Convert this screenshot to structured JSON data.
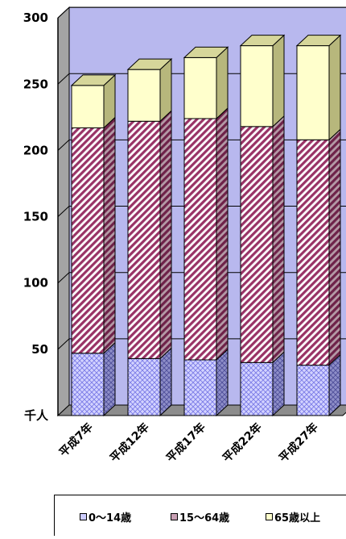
{
  "chart_data": {
    "type": "bar",
    "stacked": true,
    "three_d": true,
    "categories": [
      "平成7年",
      "平成12年",
      "平成17年",
      "平成22年",
      "平成27年"
    ],
    "series": [
      {
        "name": "0〜14歳",
        "values": [
          47,
          43,
          42,
          40,
          38
        ],
        "color": "#9999ff",
        "pattern": "crosshatch"
      },
      {
        "name": "15〜64歳",
        "values": [
          170,
          179,
          182,
          178,
          170
        ],
        "color": "#993366",
        "pattern": "diagonal"
      },
      {
        "name": "65歳以上",
        "values": [
          32,
          39,
          46,
          61,
          71
        ],
        "color": "#ffffcc",
        "pattern": "solid"
      }
    ],
    "unit_label": "千人",
    "yticks": [
      "50",
      "100",
      "150",
      "200",
      "250",
      "300"
    ],
    "ylim": [
      0,
      300
    ],
    "grid": true,
    "legend_position": "bottom"
  }
}
